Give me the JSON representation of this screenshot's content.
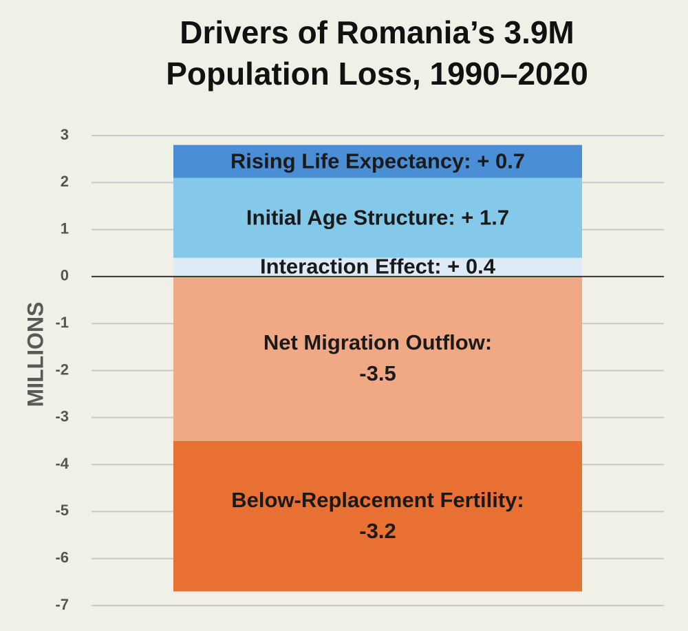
{
  "chart_data": {
    "type": "bar",
    "stacked": true,
    "title": "Drivers of Romania’s 3.9M\nPopulation Loss, 1990–2020",
    "y_label": "MILLIONS",
    "categories": [
      null
    ],
    "series": [
      {
        "color": "#dcebf7",
        "values": [
          0.4
        ],
        "value_labels": [
          "Interaction Effect: + 0.4"
        ]
      },
      {
        "color": "#84c9ea",
        "values": [
          1.7
        ],
        "value_labels": [
          "Initial Age Structure: + 1.7"
        ]
      },
      {
        "color": "#4a8fd6",
        "values": [
          0.7
        ],
        "value_labels": [
          "Rising Life Expectancy: + 0.7"
        ]
      },
      {
        "color": "#f1a985",
        "values": [
          -3.5
        ],
        "value_labels": [
          "Net Migration  Outflow:\n-3.5"
        ]
      },
      {
        "color": "#e87033",
        "values": [
          -3.2
        ],
        "value_labels": [
          "Below-Replacement Fertility:\n-3.2"
        ]
      }
    ],
    "ylim": [
      -7,
      3
    ],
    "yticks": [
      -7,
      -6,
      -5,
      -4,
      -3,
      -2,
      -1,
      0,
      1,
      2,
      3
    ],
    "grid": true
  }
}
